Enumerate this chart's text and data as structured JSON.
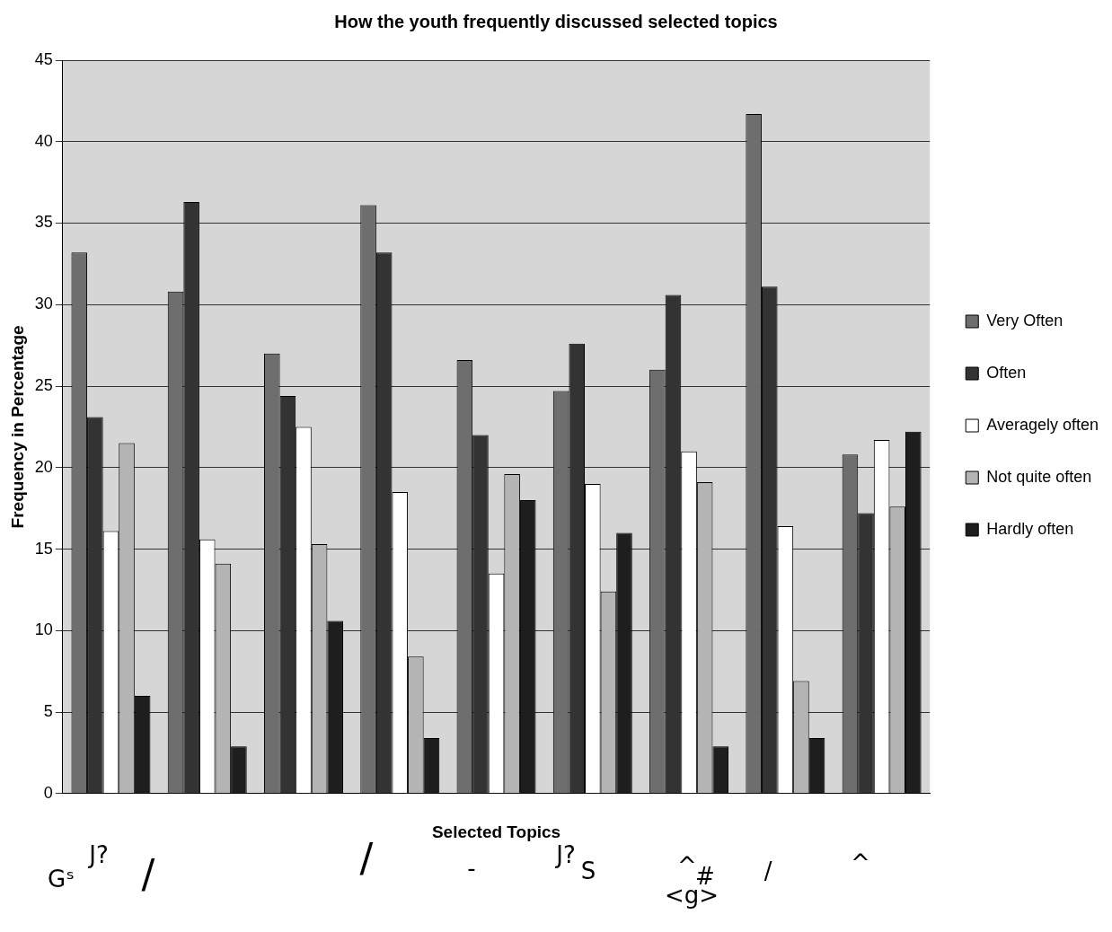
{
  "chart_data": {
    "type": "bar",
    "title": "How the youth frequently discussed selected topics",
    "xlabel": "Selected Topics",
    "ylabel": "Frequency in Percentage",
    "categories": [
      null,
      null,
      null,
      null,
      null,
      null,
      null,
      null,
      null
    ],
    "series": [
      {
        "name": "Very Often",
        "color": "#6e6e6e",
        "values": [
          33.2,
          30.8,
          27.0,
          36.1,
          26.6,
          24.7,
          26.0,
          41.7,
          20.8
        ]
      },
      {
        "name": "Often",
        "color": "#333333",
        "values": [
          23.1,
          36.3,
          24.4,
          33.2,
          22.0,
          27.6,
          30.6,
          31.1,
          17.2
        ]
      },
      {
        "name": "Averagely often",
        "color": "#ffffff",
        "values": [
          16.1,
          15.6,
          22.5,
          18.5,
          13.5,
          19.0,
          21.0,
          16.4,
          21.7
        ]
      },
      {
        "name": "Not quite often",
        "color": "#b4b4b4",
        "values": [
          21.5,
          14.1,
          15.3,
          8.4,
          19.6,
          12.4,
          19.1,
          6.9,
          17.6
        ]
      },
      {
        "name": "Hardly often",
        "color": "#1e1e1e",
        "values": [
          6.0,
          2.9,
          10.6,
          3.4,
          18.0,
          16.0,
          2.9,
          3.4,
          22.2
        ]
      }
    ],
    "ylim": [
      0,
      45
    ],
    "yticks": [
      0,
      5,
      10,
      15,
      20,
      25,
      30,
      35,
      40,
      45
    ],
    "grid": "y",
    "legend": "right",
    "annotations": [
      "J?",
      "Gˢ",
      "/",
      "/",
      "-",
      "J?",
      "S",
      "^",
      "#",
      "/",
      "^",
      "<g>"
    ]
  }
}
